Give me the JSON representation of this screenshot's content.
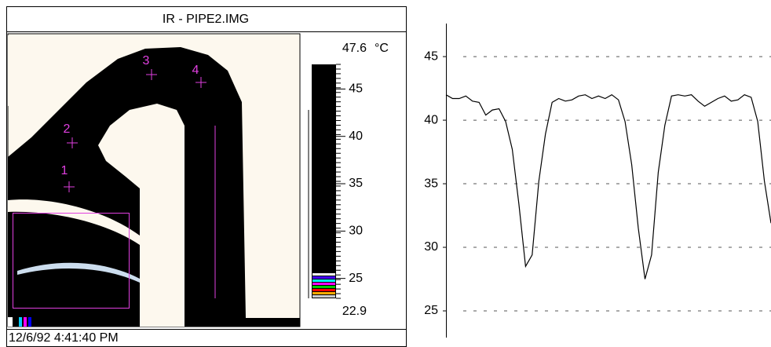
{
  "window": {
    "title": "IR - PIPE2.IMG",
    "timestamp": "12/6/92 4:41:40 PM",
    "markers": [
      "1",
      "2",
      "3",
      "4"
    ],
    "colorbar": {
      "max": 47.6,
      "unit": "°C",
      "min": 22.9,
      "ticks": [
        45,
        40,
        35,
        30,
        25
      ]
    }
  },
  "chart_data": {
    "type": "line",
    "color": "#000000",
    "values": [
      42.0,
      41.7,
      41.7,
      41.9,
      41.5,
      41.4,
      40.4,
      40.8,
      40.9,
      39.9,
      37.7,
      33.4,
      28.5,
      29.4,
      35.2,
      38.9,
      41.4,
      41.7,
      41.5,
      41.6,
      41.9,
      42.0,
      41.7,
      41.9,
      41.7,
      42.0,
      41.6,
      39.9,
      36.5,
      31.5,
      27.5,
      29.4,
      35.9,
      39.6,
      41.9,
      42.0,
      41.9,
      42.0,
      41.5,
      41.1,
      41.4,
      41.7,
      41.9,
      41.5,
      41.6,
      42.0,
      41.8,
      39.9,
      35.2,
      31.9
    ],
    "ylim": [
      22.9,
      47.6
    ],
    "yticks": [
      45,
      40,
      35,
      30,
      25
    ],
    "grid": true
  }
}
